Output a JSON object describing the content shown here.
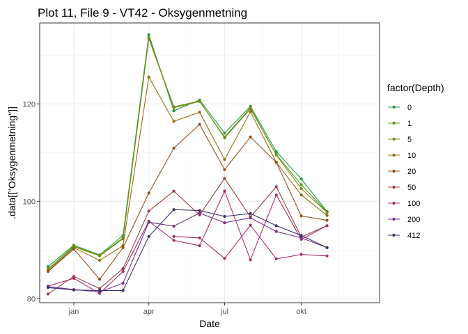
{
  "chart_data": {
    "type": "line",
    "title": "Plot 11, File 9 - VT42  -  Oksygenmetning",
    "xlabel": "Date",
    "ylabel": ".data[[\"Oksygenmetning\"]]",
    "x_ticks": [
      {
        "label": "jan",
        "value": "2021-01-01"
      },
      {
        "label": "apr",
        "value": "2021-04-01"
      },
      {
        "label": "jul",
        "value": "2021-07-01"
      },
      {
        "label": "okt",
        "value": "2021-10-01"
      }
    ],
    "y_ticks": [
      80,
      100,
      120
    ],
    "xlim": [
      "2020-11-21",
      "2022-01-03"
    ],
    "ylim": [
      79.2,
      136.6
    ],
    "grid": true,
    "legend_position": "right",
    "legend_title": "factor(Depth)",
    "x": [
      "2020-12-01",
      "2021-01-01",
      "2021-02-01",
      "2021-03-01",
      "2021-04-01",
      "2021-05-01",
      "2021-06-01",
      "2021-07-01",
      "2021-08-01",
      "2021-09-01",
      "2021-10-01",
      "2021-11-01"
    ],
    "series": [
      {
        "name": "0",
        "color": "#1b9e3a",
        "values": [
          86.6,
          91.0,
          89.0,
          93.0,
          134.2,
          118.6,
          120.8,
          114.0,
          119.5,
          110.2,
          104.6,
          97.9
        ]
      },
      {
        "name": "1",
        "color": "#57991d",
        "values": [
          86.1,
          90.8,
          88.9,
          92.5,
          133.6,
          119.4,
          120.6,
          113.0,
          119.0,
          109.6,
          103.4,
          97.8
        ]
      },
      {
        "name": "5",
        "color": "#7d8a12",
        "values": [
          86.0,
          90.7,
          88.8,
          92.3,
          133.4,
          119.2,
          120.5,
          113.2,
          119.2,
          109.5,
          102.6,
          97.7
        ]
      },
      {
        "name": "10",
        "color": "#936d0d",
        "values": [
          85.7,
          90.5,
          87.9,
          90.9,
          125.5,
          116.4,
          118.3,
          108.6,
          118.4,
          108.0,
          101.3,
          97.1
        ]
      },
      {
        "name": "20",
        "color": "#8e4f1c",
        "values": [
          85.6,
          90.2,
          84.0,
          90.5,
          101.7,
          110.9,
          115.8,
          106.5,
          113.2,
          108.0,
          97.0,
          96.1
        ]
      },
      {
        "name": "50",
        "color": "#9d3d3f",
        "values": [
          81.0,
          84.6,
          82.1,
          86.2,
          98.0,
          102.1,
          97.2,
          104.7,
          96.8,
          103.0,
          92.7,
          95.0
        ]
      },
      {
        "name": "100",
        "color": "#a12f6b",
        "values": [
          82.6,
          84.2,
          81.1,
          85.6,
          95.9,
          92.0,
          90.9,
          102.1,
          88.0,
          101.3,
          92.2,
          95.0
        ]
      },
      {
        "name": "200",
        "color": "#7a2f8a",
        "values": [
          82.5,
          81.9,
          81.4,
          83.2,
          95.7,
          94.9,
          97.6,
          95.6,
          96.6,
          93.8,
          92.5,
          90.5
        ]
      },
      {
        "name": "412",
        "color": "#3d2e6b",
        "values": [
          82.3,
          81.8,
          81.7,
          81.7,
          92.8,
          98.3,
          98.1,
          96.9,
          97.5,
          95.0,
          93.0,
          90.5
        ]
      }
    ],
    "points_500": [
      {
        "name": "100",
        "points": [
          [
            "2021-05-01",
            92.8
          ],
          [
            "2021-06-01",
            92.5
          ],
          [
            "2021-07-01",
            88.3
          ],
          [
            "2021-08-01",
            95.1
          ],
          [
            "2021-09-01",
            88.2
          ],
          [
            "2021-10-01",
            89.1
          ],
          [
            "2021-11-01",
            88.8
          ]
        ]
      }
    ]
  }
}
